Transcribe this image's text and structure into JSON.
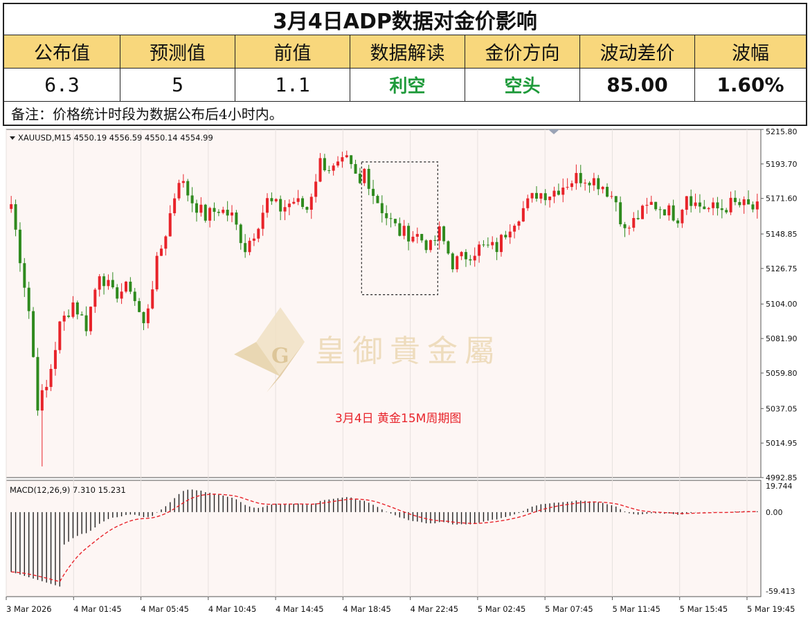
{
  "table": {
    "title": "3月4日ADP数据对金价影响",
    "headers": [
      "公布值",
      "预测值",
      "前值",
      "数据解读",
      "金价方向",
      "波动差价",
      "波幅"
    ],
    "values": [
      "6.3",
      "5",
      "1.1",
      "利空",
      "空头",
      "85.00",
      "1.60%"
    ],
    "note": "备注：价格统计时段为数据公布后4小时内。"
  },
  "chart_data": {
    "type": "candlestick",
    "symbol_label": "XAUUSD,M15  4550.19 4556.59 4550.14 4554.99",
    "caption": "3月4日  黄金15M周期图",
    "watermark": "皇御貴金屬",
    "watermark_letter": "G",
    "y_ticks": [
      "5215.80",
      "5193.70",
      "5171.60",
      "5148.85",
      "5126.75",
      "5104.00",
      "5081.90",
      "5059.80",
      "5037.05",
      "5014.95",
      "4992.85"
    ],
    "y_range": [
      4992.85,
      5215.8
    ],
    "x_ticks": [
      "3 Mar 2026",
      "4 Mar 01:45",
      "4 Mar 05:45",
      "4 Mar 10:45",
      "4 Mar 14:45",
      "4 Mar 18:45",
      "4 Mar 22:45",
      "5 Mar 02:45",
      "5 Mar 07:45",
      "5 Mar 11:45",
      "5 Mar 15:45",
      "5 Mar 19:45"
    ],
    "close_path": [
      [
        0,
        5168
      ],
      [
        4,
        5100
      ],
      [
        6,
        5040
      ],
      [
        8,
        5050
      ],
      [
        11,
        5090
      ],
      [
        14,
        5105
      ],
      [
        17,
        5090
      ],
      [
        20,
        5125
      ],
      [
        23,
        5110
      ],
      [
        27,
        5115
      ],
      [
        30,
        5090
      ],
      [
        33,
        5130
      ],
      [
        35,
        5150
      ],
      [
        38,
        5185
      ],
      [
        41,
        5170
      ],
      [
        44,
        5160
      ],
      [
        47,
        5165
      ],
      [
        50,
        5160
      ],
      [
        53,
        5140
      ],
      [
        55,
        5150
      ],
      [
        58,
        5170
      ],
      [
        61,
        5165
      ],
      [
        64,
        5170
      ],
      [
        67,
        5165
      ],
      [
        70,
        5195
      ],
      [
        73,
        5190
      ],
      [
        76,
        5195
      ],
      [
        79,
        5180
      ],
      [
        80,
        5190
      ],
      [
        82,
        5175
      ],
      [
        85,
        5160
      ],
      [
        88,
        5150
      ],
      [
        92,
        5148
      ],
      [
        95,
        5140
      ],
      [
        97,
        5150
      ],
      [
        100,
        5130
      ],
      [
        103,
        5135
      ],
      [
        106,
        5140
      ],
      [
        110,
        5140
      ],
      [
        113,
        5155
      ],
      [
        116,
        5165
      ],
      [
        119,
        5175
      ],
      [
        122,
        5175
      ],
      [
        125,
        5180
      ],
      [
        128,
        5185
      ],
      [
        131,
        5185
      ],
      [
        134,
        5180
      ],
      [
        137,
        5170
      ],
      [
        139,
        5150
      ],
      [
        142,
        5160
      ],
      [
        145,
        5168
      ],
      [
        148,
        5165
      ],
      [
        151,
        5160
      ],
      [
        153,
        5175
      ],
      [
        155,
        5168
      ],
      [
        158,
        5165
      ],
      [
        161,
        5165
      ],
      [
        163,
        5168
      ],
      [
        166,
        5167
      ],
      [
        168,
        5165
      ]
    ],
    "highlight_box": {
      "from": 80,
      "to": 96,
      "low": 5110,
      "high": 5195
    },
    "macd": {
      "label": "MACD(12,26,9) 7.310 15.231",
      "y_ticks": [
        "19.744",
        "0.00",
        "-59.413"
      ],
      "y_range": [
        -59.413,
        19.744
      ]
    },
    "colors": {
      "bull": "#e8232a",
      "bear": "#2f8a1e",
      "signal": "#e8232a",
      "caption": "#e8232a",
      "bg": "#fdf6f4"
    }
  }
}
